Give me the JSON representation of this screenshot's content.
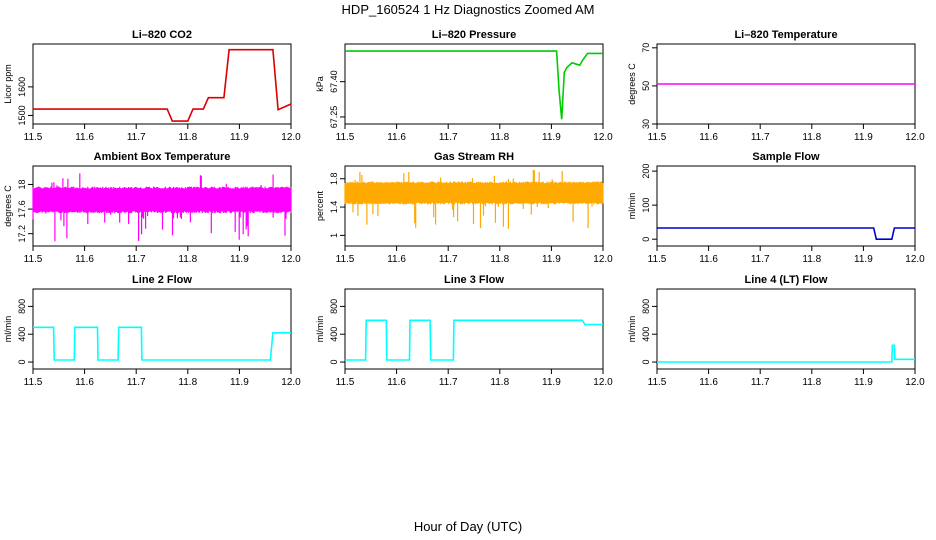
{
  "title": "HDP_160524  1 Hz Diagnostics Zoomed AM",
  "xlabel": "Hour of Day (UTC)",
  "chart_data": [
    {
      "type": "line",
      "title": "Li–820 CO2",
      "ylabel": "Licor ppm",
      "color": "#dd0000",
      "xlim": [
        11.5,
        12.0
      ],
      "ylim": [
        1470,
        1750
      ],
      "xticks": [
        11.5,
        11.6,
        11.7,
        11.8,
        11.9,
        12.0
      ],
      "yticks": [
        1500,
        1600
      ],
      "series": [
        {
          "x": [
            11.5,
            11.76,
            11.77,
            11.8,
            11.81,
            11.83,
            11.84,
            11.87,
            11.88,
            11.965,
            11.975,
            12.0
          ],
          "values": [
            1522,
            1522,
            1480,
            1480,
            1522,
            1522,
            1562,
            1562,
            1730,
            1730,
            1520,
            1540
          ]
        }
      ]
    },
    {
      "type": "line",
      "title": "Li–820 Pressure",
      "ylabel": "kPa",
      "color": "#00cc00",
      "xlim": [
        11.5,
        12.0
      ],
      "ylim": [
        67.22,
        67.56
      ],
      "xticks": [
        11.5,
        11.6,
        11.7,
        11.8,
        11.9,
        12.0
      ],
      "yticks": [
        67.25,
        67.4
      ],
      "ytick_labels": [
        "67.25",
        "67.40"
      ],
      "series": [
        {
          "x": [
            11.5,
            11.91,
            11.915,
            11.92,
            11.925,
            11.93,
            11.94,
            11.955,
            11.96,
            11.97,
            12.0
          ],
          "values": [
            67.53,
            67.53,
            67.36,
            67.24,
            67.44,
            67.46,
            67.48,
            67.47,
            67.49,
            67.52,
            67.52
          ]
        }
      ]
    },
    {
      "type": "line",
      "title": "Li–820 Temperature",
      "ylabel": "degrees C",
      "color": "#ff00ff",
      "xlim": [
        11.5,
        12.0
      ],
      "ylim": [
        30,
        72
      ],
      "xticks": [
        11.5,
        11.6,
        11.7,
        11.8,
        11.9,
        12.0
      ],
      "yticks": [
        30,
        50,
        70
      ],
      "series": [
        {
          "x": [
            11.5,
            12.0
          ],
          "values": [
            51,
            51
          ]
        }
      ]
    },
    {
      "type": "line",
      "title": "Ambient Box Temperature",
      "ylabel": "degrees C",
      "color": "#ff00ff",
      "xlim": [
        11.5,
        12.0
      ],
      "ylim": [
        17.0,
        18.3
      ],
      "xticks": [
        11.5,
        11.6,
        11.7,
        11.8,
        11.9,
        12.0
      ],
      "yticks": [
        17.2,
        17.6,
        18.0
      ],
      "series": [
        {
          "name": "",
          "x": [
            11.5,
            12.0
          ],
          "band": [
            17.55,
            17.95
          ],
          "values": [
            17.75,
            17.75
          ]
        }
      ]
    },
    {
      "type": "line",
      "title": "Gas Stream RH",
      "ylabel": "percent",
      "color": "#ffaa00",
      "xlim": [
        11.5,
        12.0
      ],
      "ylim": [
        0.85,
        1.98
      ],
      "xticks": [
        11.5,
        11.6,
        11.7,
        11.8,
        11.9,
        12.0
      ],
      "yticks": [
        1.0,
        1.4,
        1.8
      ],
      "series": [
        {
          "x": [
            11.5,
            12.0
          ],
          "band": [
            1.45,
            1.75
          ],
          "values": [
            1.6,
            1.6
          ]
        }
      ]
    },
    {
      "type": "line",
      "title": "Sample Flow",
      "ylabel": "ml/min",
      "color": "#0000cc",
      "xlim": [
        11.5,
        12.0
      ],
      "ylim": [
        -20,
        215
      ],
      "xticks": [
        11.5,
        11.6,
        11.7,
        11.8,
        11.9,
        12.0
      ],
      "yticks": [
        0,
        100,
        200
      ],
      "series": [
        {
          "x": [
            11.5,
            11.92,
            11.925,
            11.955,
            11.96,
            12.0
          ],
          "values": [
            33,
            33,
            0,
            0,
            33,
            33
          ]
        }
      ]
    },
    {
      "type": "line",
      "title": "Line 2 Flow",
      "ylabel": "ml/min",
      "color": "#00ffff",
      "xlim": [
        11.5,
        12.0
      ],
      "ylim": [
        -100,
        1050
      ],
      "xticks": [
        11.5,
        11.6,
        11.7,
        11.8,
        11.9,
        12.0
      ],
      "yticks": [
        0,
        400,
        800
      ],
      "series": [
        {
          "x": [
            11.5,
            11.54,
            11.541,
            11.58,
            11.581,
            11.625,
            11.626,
            11.665,
            11.666,
            11.71,
            11.711,
            11.96,
            11.965,
            12.0
          ],
          "values": [
            500,
            500,
            30,
            30,
            500,
            500,
            30,
            30,
            500,
            500,
            30,
            30,
            420,
            420
          ]
        }
      ]
    },
    {
      "type": "line",
      "title": "Line 3 Flow",
      "ylabel": "ml/min",
      "color": "#00ffff",
      "xlim": [
        11.5,
        12.0
      ],
      "ylim": [
        -100,
        1050
      ],
      "xticks": [
        11.5,
        11.6,
        11.7,
        11.8,
        11.9,
        12.0
      ],
      "yticks": [
        0,
        400,
        800
      ],
      "series": [
        {
          "x": [
            11.5,
            11.54,
            11.541,
            11.58,
            11.581,
            11.625,
            11.626,
            11.665,
            11.666,
            11.71,
            11.711,
            11.96,
            11.965,
            12.0
          ],
          "values": [
            30,
            30,
            600,
            600,
            30,
            30,
            600,
            600,
            30,
            30,
            600,
            600,
            540,
            540
          ]
        }
      ]
    },
    {
      "type": "line",
      "title": "Line 4 (LT) Flow",
      "ylabel": "ml/min",
      "color": "#00ffff",
      "xlim": [
        11.5,
        12.0
      ],
      "ylim": [
        -100,
        1050
      ],
      "xticks": [
        11.5,
        11.6,
        11.7,
        11.8,
        11.9,
        12.0
      ],
      "yticks": [
        0,
        400,
        800
      ],
      "series": [
        {
          "x": [
            11.5,
            11.955,
            11.956,
            11.96,
            11.961,
            12.0
          ],
          "values": [
            0,
            0,
            240,
            240,
            40,
            40
          ]
        }
      ]
    }
  ]
}
